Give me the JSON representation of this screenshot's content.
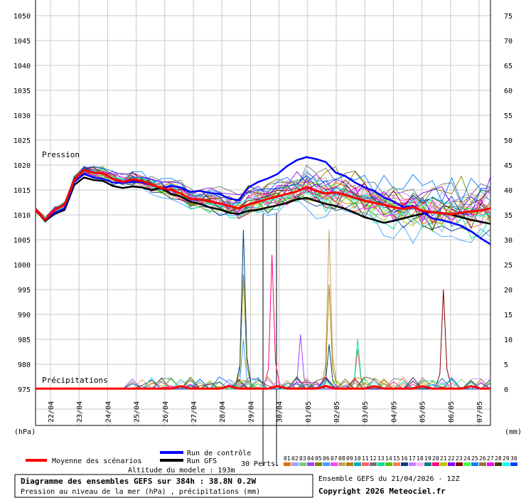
{
  "chart_data": {
    "type": "line",
    "title": "Diagramme des ensembles GEFS sur 384h : 38.8N 0.2W",
    "subtitle": "Pression au niveau de la mer (hPa) , précipitations (mm)",
    "altitude_text": "Altitude du modele : 193m",
    "run_text": "Ensemble GEFS du 21/04/2026 - 12Z",
    "copyright_text": "Copyright 2026 Meteociel.fr",
    "left_axis_unit": "(hPa)",
    "right_axis_unit": "(mm)",
    "left_ticks": [
      1050,
      1045,
      1040,
      1035,
      1030,
      1025,
      1020,
      1015,
      1010,
      1005,
      1000,
      995,
      990,
      985,
      980,
      975
    ],
    "right_ticks": [
      75,
      70,
      65,
      60,
      55,
      50,
      45,
      40,
      35,
      30,
      25,
      20,
      15,
      10,
      5,
      0
    ],
    "ylim_pressure": [
      975,
      1050
    ],
    "ylim_precip": [
      0,
      75
    ],
    "grid": true,
    "x_labels": [
      "22/04",
      "23/04",
      "24/04",
      "25/04",
      "26/04",
      "27/04",
      "28/04",
      "29/04",
      "30/04",
      "01/05",
      "02/05",
      "03/05",
      "04/05",
      "05/05",
      "06/05",
      "07/05"
    ],
    "section_pressure": "Pression",
    "section_precip": "Précipitations",
    "legend": {
      "mean": "Moyenne des scénarios",
      "control": "Run de contrôle",
      "gfs": "Run GFS",
      "perts": "30 Perts.",
      "members": [
        "01",
        "02",
        "03",
        "04",
        "05",
        "06",
        "07",
        "08",
        "09",
        "10",
        "11",
        "12",
        "13",
        "14",
        "15",
        "16",
        "17",
        "18",
        "19",
        "20",
        "21",
        "22",
        "23",
        "24",
        "25",
        "26",
        "27",
        "28",
        "29",
        "30"
      ]
    },
    "colors": {
      "mean": "#ff0000",
      "control": "#0000ff",
      "gfs": "#000000",
      "members": [
        "#e07000",
        "#a0a0ff",
        "#70d070",
        "#a040ff",
        "#808000",
        "#40a0ff",
        "#ff40ff",
        "#c0a060",
        "#b08000",
        "#00b0b0",
        "#ff6060",
        "#707070",
        "#00e090",
        "#60c000",
        "#ff8040",
        "#004080",
        "#c080ff",
        "#ffb0ff",
        "#008080",
        "#ff0080",
        "#c0c000",
        "#8000ff",
        "#800000",
        "#40ff40",
        "#0080ff",
        "#a07040",
        "#ff00ff",
        "#404000",
        "#00ffff",
        "#0040ff"
      ]
    },
    "mean_pressure": [
      1011,
      1009,
      1011,
      1012,
      1017,
      1019,
      1018.5,
      1018.3,
      1017.2,
      1016.6,
      1017.1,
      1016.8,
      1016,
      1015.4,
      1015,
      1014.3,
      1013.2,
      1013.1,
      1012.7,
      1012.3,
      1011.8,
      1011.3,
      1012.1,
      1012.6,
      1013.2,
      1013.7,
      1014.2,
      1014.7,
      1015.6,
      1014.8,
      1014.3,
      1014.5,
      1014,
      1013.4,
      1012.8,
      1012.4,
      1012,
      1011.5,
      1011.2,
      1011.6,
      1010.8,
      1010.5,
      1010.3,
      1010.1,
      1010.4,
      1010.7,
      1010.9,
      1011.3
    ],
    "control_pressure": [
      1011,
      1009,
      1010.4,
      1011.3,
      1016.6,
      1018.2,
      1017.5,
      1017.2,
      1016.5,
      1016.4,
      1016.7,
      1016.5,
      1016,
      1015.4,
      1015.8,
      1015.5,
      1014.6,
      1014.8,
      1014.4,
      1014.2,
      1013.3,
      1012.9,
      1015.5,
      1016.6,
      1017.3,
      1018.2,
      1019.8,
      1021,
      1021.6,
      1021.2,
      1020.6,
      1018.5,
      1017.8,
      1016.5,
      1015.5,
      1014.8,
      1013.5,
      1012.7,
      1011.5,
      1011.8,
      1010.6,
      1009.3,
      1008.9,
      1008.4,
      1007.8,
      1006.7,
      1005.3,
      1004.1
    ],
    "gfs_pressure": [
      1011,
      1008.8,
      1010.2,
      1011,
      1016,
      1017.5,
      1017,
      1016.8,
      1015.8,
      1015.4,
      1015.7,
      1015.5,
      1015,
      1015.4,
      1014.2,
      1013.7,
      1012.6,
      1012.2,
      1011.5,
      1011.1,
      1010.4,
      1010.2,
      1010.8,
      1011,
      1011.5,
      1011.9,
      1012.4,
      1013.1,
      1013.4,
      1012.8,
      1012.2,
      1011.8,
      1011.2,
      1010.4,
      1009.5,
      1009,
      1008.4,
      1008.8,
      1009.3,
      1009.8,
      1010.2,
      1010.6,
      1010.4,
      1010,
      1009.5,
      1009,
      1008.6,
      1008.2
    ],
    "spike_precip": [
      {
        "member": "16",
        "day": "29/04",
        "value": 32
      },
      {
        "member": "05",
        "day": "29/04",
        "value": 23
      },
      {
        "member": "06",
        "day": "29/04",
        "value": 10
      },
      {
        "member": "20",
        "day": "30/04",
        "value": 27
      },
      {
        "member": "04",
        "day": "01/05",
        "value": 11
      },
      {
        "member": "08",
        "day": "02/05",
        "value": 32
      },
      {
        "member": "09",
        "day": "02/05",
        "value": 21
      },
      {
        "member": "16",
        "day": "02/05",
        "value": 9
      },
      {
        "member": "11",
        "day": "03/05",
        "value": 8
      },
      {
        "member": "13",
        "day": "03/05",
        "value": 10
      },
      {
        "member": "23",
        "day": "06/05",
        "value": 20
      }
    ]
  }
}
